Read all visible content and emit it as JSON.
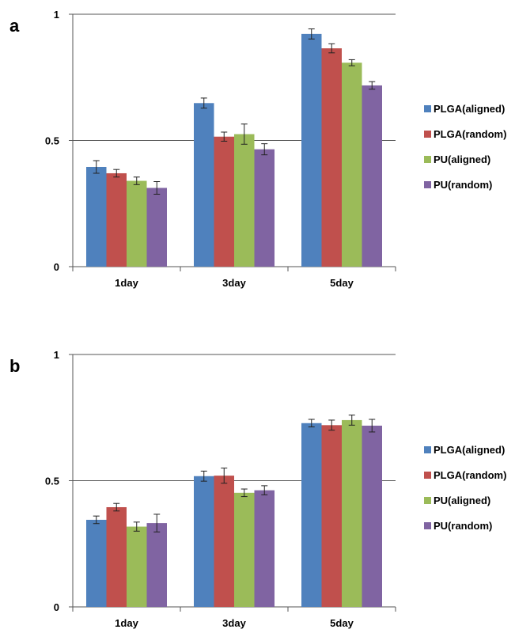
{
  "panels": [
    {
      "letter": "a"
    },
    {
      "letter": "b"
    }
  ],
  "chart_data": [
    {
      "type": "bar",
      "panel": "a",
      "categories": [
        "1day",
        "3day",
        "5day"
      ],
      "series": [
        {
          "name": "PLGA(aligned)",
          "color": "#4f81bd",
          "values": [
            0.395,
            0.648,
            0.922
          ],
          "errors": [
            0.025,
            0.02,
            0.02
          ]
        },
        {
          "name": "PLGA(random)",
          "color": "#c0504d",
          "values": [
            0.37,
            0.515,
            0.865
          ],
          "errors": [
            0.015,
            0.018,
            0.018
          ]
        },
        {
          "name": "PU(aligned)",
          "color": "#9bbb59",
          "values": [
            0.34,
            0.525,
            0.808
          ],
          "errors": [
            0.015,
            0.04,
            0.012
          ]
        },
        {
          "name": "PU(random)",
          "color": "#8064a2",
          "values": [
            0.312,
            0.465,
            0.718
          ],
          "errors": [
            0.025,
            0.022,
            0.015
          ]
        }
      ],
      "ylim": [
        0,
        1
      ],
      "yticks": [
        "0",
        "0.5",
        "1"
      ],
      "ytick_values": [
        0,
        0.5,
        1
      ],
      "grid": "horizontal at 0.5 and 1",
      "legend": "right"
    },
    {
      "type": "bar",
      "panel": "b",
      "categories": [
        "1day",
        "3day",
        "5day"
      ],
      "series": [
        {
          "name": "PLGA(aligned)",
          "color": "#4f81bd",
          "values": [
            0.345,
            0.518,
            0.728
          ],
          "errors": [
            0.015,
            0.02,
            0.015
          ]
        },
        {
          "name": "PLGA(random)",
          "color": "#c0504d",
          "values": [
            0.395,
            0.52,
            0.72
          ],
          "errors": [
            0.015,
            0.03,
            0.02
          ]
        },
        {
          "name": "PU(aligned)",
          "color": "#9bbb59",
          "values": [
            0.318,
            0.452,
            0.74
          ],
          "errors": [
            0.018,
            0.015,
            0.02
          ]
        },
        {
          "name": "PU(random)",
          "color": "#8064a2",
          "values": [
            0.332,
            0.462,
            0.718
          ],
          "errors": [
            0.035,
            0.018,
            0.025
          ]
        }
      ],
      "ylim": [
        0,
        1
      ],
      "yticks": [
        "0",
        "0.5",
        "1"
      ],
      "ytick_values": [
        0,
        0.5,
        1
      ],
      "grid": "horizontal at 0.5 and 1",
      "legend": "right"
    }
  ]
}
